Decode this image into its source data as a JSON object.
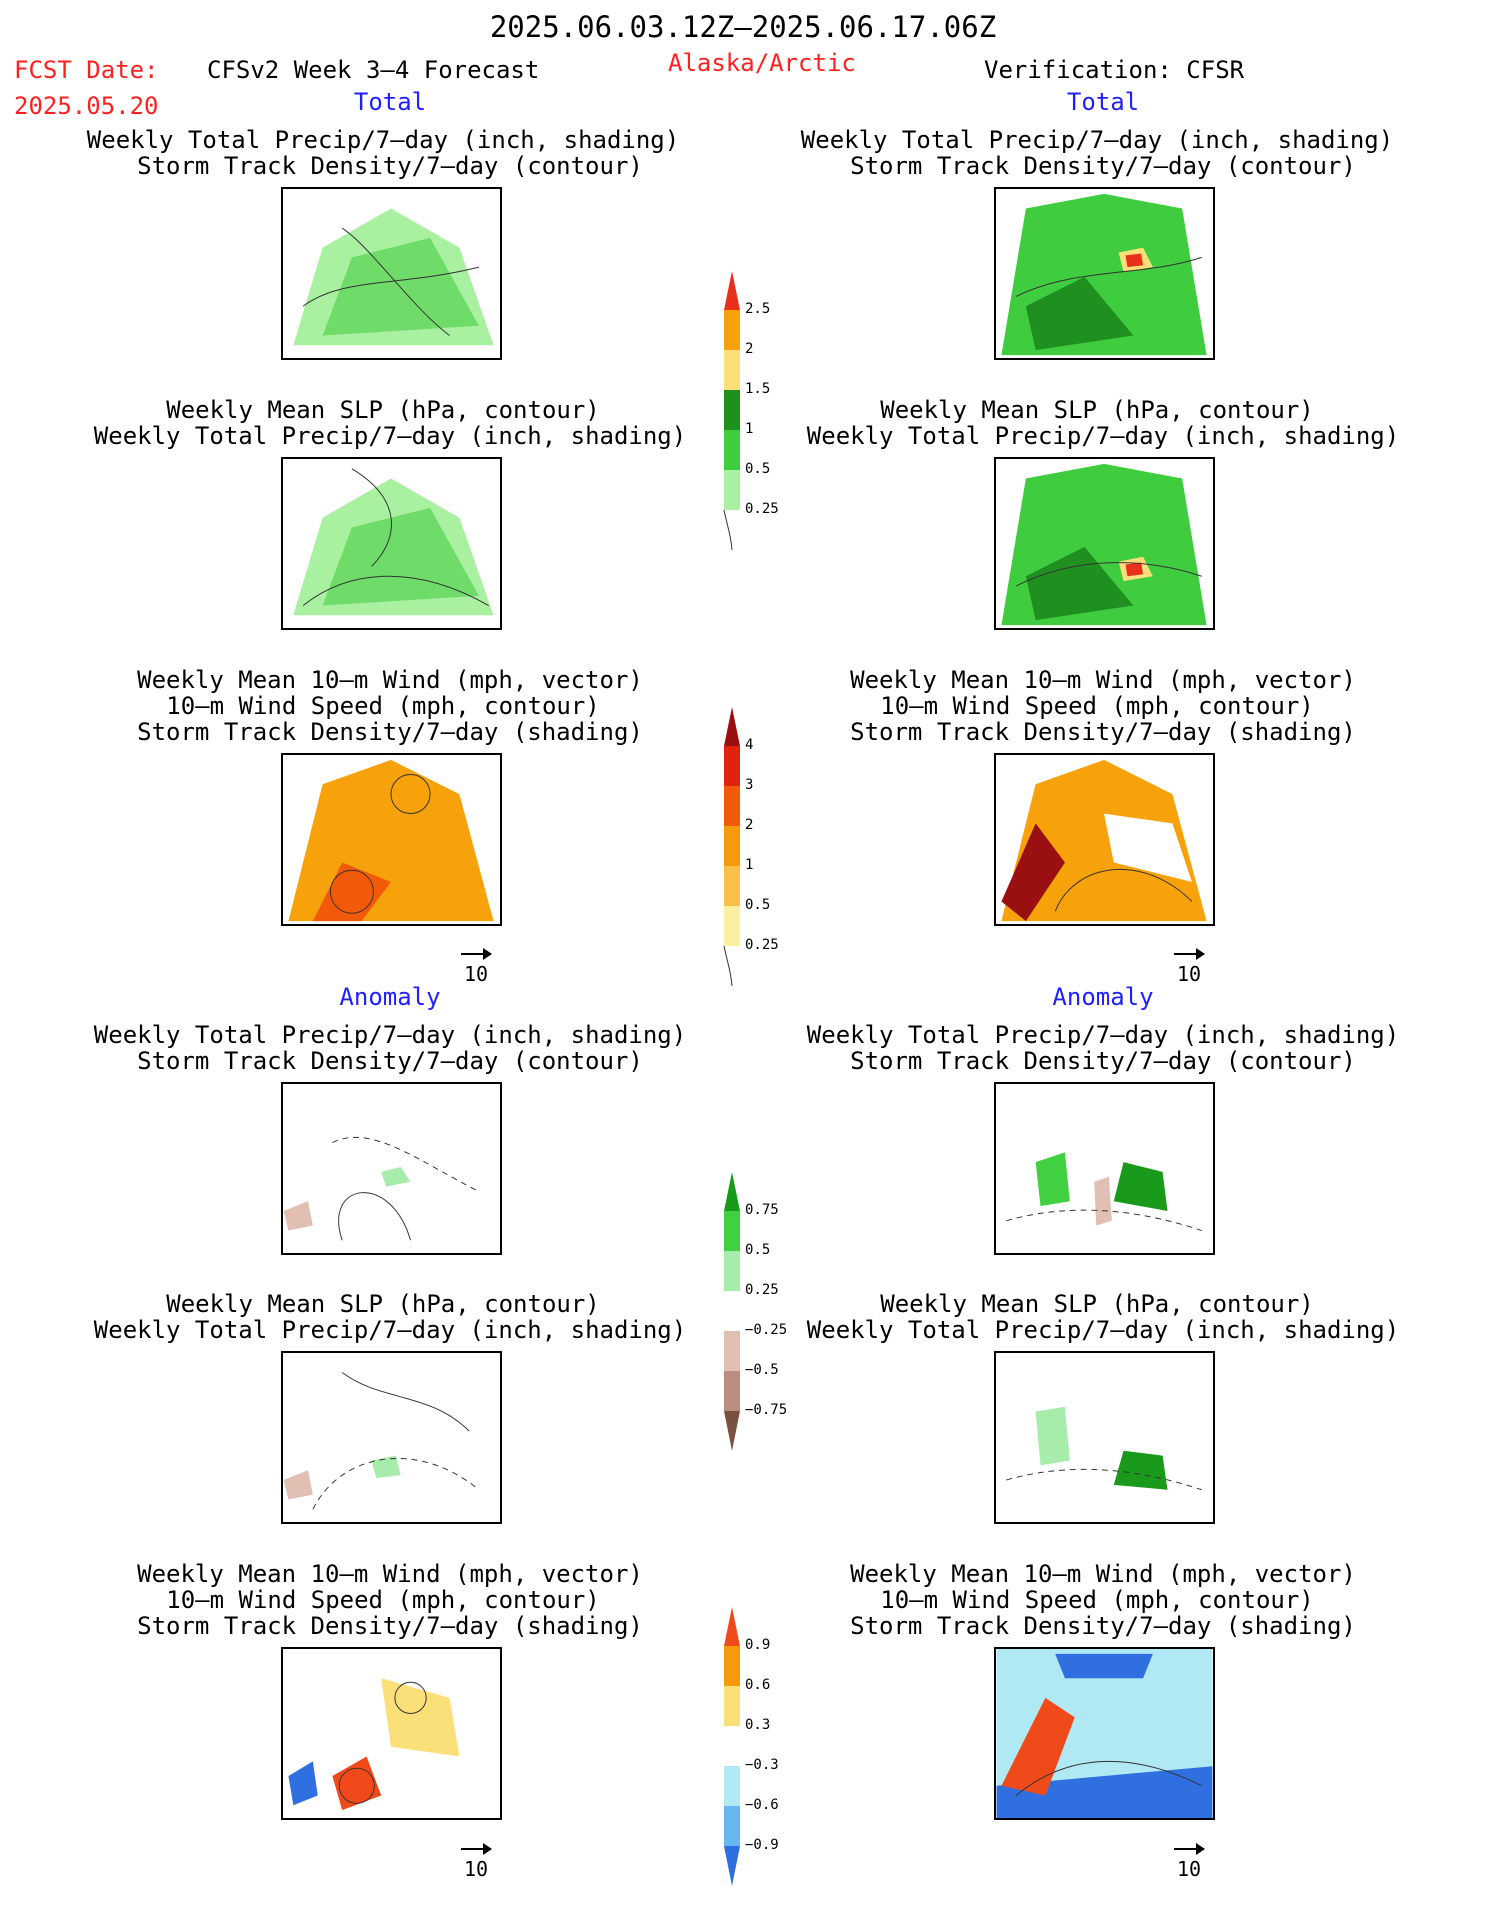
{
  "header": {
    "period": "2025.06.03.12Z–2025.06.17.06Z",
    "fcst_label": "FCST Date:",
    "fcst_date": "2025.05.20",
    "model": "CFSv2 Week 3–4 Forecast",
    "region": "Alaska/Arctic",
    "verification": "Verification: CFSR"
  },
  "sections": {
    "total": "Total",
    "anomaly": "Anomaly"
  },
  "titles": {
    "precip_std": [
      "Weekly Total Precip/7–day (inch, shading)",
      "Storm Track Density/7–day (contour)"
    ],
    "slp_precip": [
      "Weekly Mean SLP (hPa, contour)",
      "Weekly Total Precip/7–day (inch, shading)"
    ],
    "wind": [
      "Weekly Mean 10–m Wind (mph, vector)",
      "10–m Wind Speed (mph, contour)",
      "Storm Track Density/7–day (shading)"
    ]
  },
  "vector_ref": "10",
  "colorbars": {
    "precip_total": {
      "labels": [
        "2.5",
        "2",
        "1.5",
        "1",
        "0.5",
        "0.25"
      ],
      "colors": [
        "#e8301c",
        "#f7a20a",
        "#fbe07a",
        "#1f8f1f",
        "#3fcc3f",
        "#a9f0a0"
      ]
    },
    "std_total": {
      "labels": [
        "4",
        "3",
        "2",
        "1",
        "0.5",
        "0.25"
      ],
      "colors": [
        "#9a0f0f",
        "#e0220f",
        "#f25a0a",
        "#f79a0a",
        "#fbc04a",
        "#fcefa0"
      ]
    },
    "precip_anom": {
      "labels": [
        "0.75",
        "0.5",
        "0.25",
        "−0.25",
        "−0.5",
        "−0.75"
      ],
      "colors": [
        "#1a9a1a",
        "#41d041",
        "#a8ecac",
        "#ffffff",
        "#e1bfb3",
        "#b98d80",
        "#7a5040"
      ]
    },
    "std_anom": {
      "labels": [
        "0.9",
        "0.6",
        "0.3",
        "−0.3",
        "−0.6",
        "−0.9"
      ],
      "colors": [
        "#f04a1a",
        "#f79a0a",
        "#fbe07a",
        "#ffffff",
        "#b0e8f4",
        "#67b8ee",
        "#2f6fe0"
      ]
    }
  }
}
